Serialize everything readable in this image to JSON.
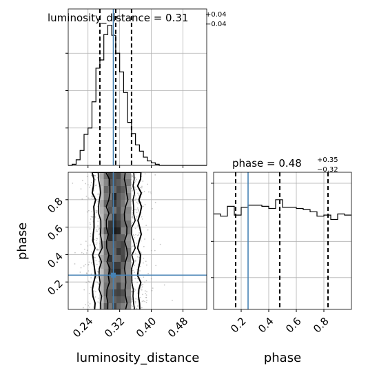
{
  "chart_data": [
    {
      "type": "histogram",
      "panel": "marginal-luminosity_distance",
      "title": "luminosity_distance = 0.31",
      "title_sup": "+0.04",
      "title_sub": "−0.04",
      "xlim": [
        0.19,
        0.54
      ],
      "bin_edges": [
        0.19,
        0.2,
        0.21,
        0.22,
        0.23,
        0.24,
        0.25,
        0.26,
        0.27,
        0.28,
        0.29,
        0.3,
        0.31,
        0.32,
        0.33,
        0.34,
        0.35,
        0.36,
        0.37,
        0.38,
        0.39,
        0.4,
        0.41,
        0.42,
        0.43,
        0.44,
        0.45,
        0.46,
        0.47,
        0.48,
        0.49,
        0.5,
        0.51,
        0.52,
        0.53,
        0.54
      ],
      "counts": [
        0,
        0.3,
        1.5,
        4,
        8.3,
        10,
        17,
        26,
        28.2,
        35,
        37.5,
        34.8,
        30,
        25,
        19.5,
        11.5,
        8.5,
        5.5,
        3.8,
        2.2,
        1.2,
        0.7,
        0.3,
        0,
        0,
        0,
        0,
        0,
        0,
        0,
        0,
        0,
        0,
        0,
        0
      ],
      "ylim": [
        0,
        40
      ],
      "quantile_lines": [
        0.27,
        0.31,
        0.35
      ],
      "truth": 0.304,
      "grid": true
    },
    {
      "type": "histogram",
      "panel": "marginal-phase",
      "title": "phase = 0.48",
      "title_sup": "+0.35",
      "title_sub": "−0.32",
      "xtick_labels": [
        "0.2",
        "0.4",
        "0.6",
        "0.8"
      ],
      "xlabel": "phase",
      "xlim": [
        0,
        1
      ],
      "bin_edges": [
        0,
        0.05,
        0.1,
        0.15,
        0.2,
        0.25,
        0.3,
        0.35,
        0.4,
        0.45,
        0.5,
        0.55,
        0.6,
        0.65,
        0.7,
        0.75,
        0.8,
        0.85,
        0.9,
        0.95,
        1.0
      ],
      "counts": [
        8.7,
        8.5,
        9.4,
        8.6,
        9.3,
        9.5,
        9.5,
        9.4,
        9.2,
        10.0,
        9.3,
        9.3,
        9.2,
        9.1,
        8.9,
        8.5,
        8.6,
        8.2,
        8.7,
        8.6
      ],
      "ylim": [
        0,
        12.5
      ],
      "quantile_lines": [
        0.16,
        0.48,
        0.83
      ],
      "truth": 0.25,
      "grid": true
    },
    {
      "type": "2d-density",
      "panel": "joint-luminosity_distance-phase",
      "xlabel": "luminosity_distance",
      "ylabel": "phase",
      "xtick_labels": [
        "0.24",
        "0.32",
        "0.40",
        "0.48"
      ],
      "ytick_labels": [
        "0.2",
        "0.4",
        "0.6",
        "0.8"
      ],
      "xlim": [
        0.19,
        0.54
      ],
      "ylim": [
        0,
        1
      ],
      "contours": "0.5, 1, 1.5, 2 sigma",
      "truth": [
        0.304,
        0.25
      ],
      "grid": true
    }
  ]
}
